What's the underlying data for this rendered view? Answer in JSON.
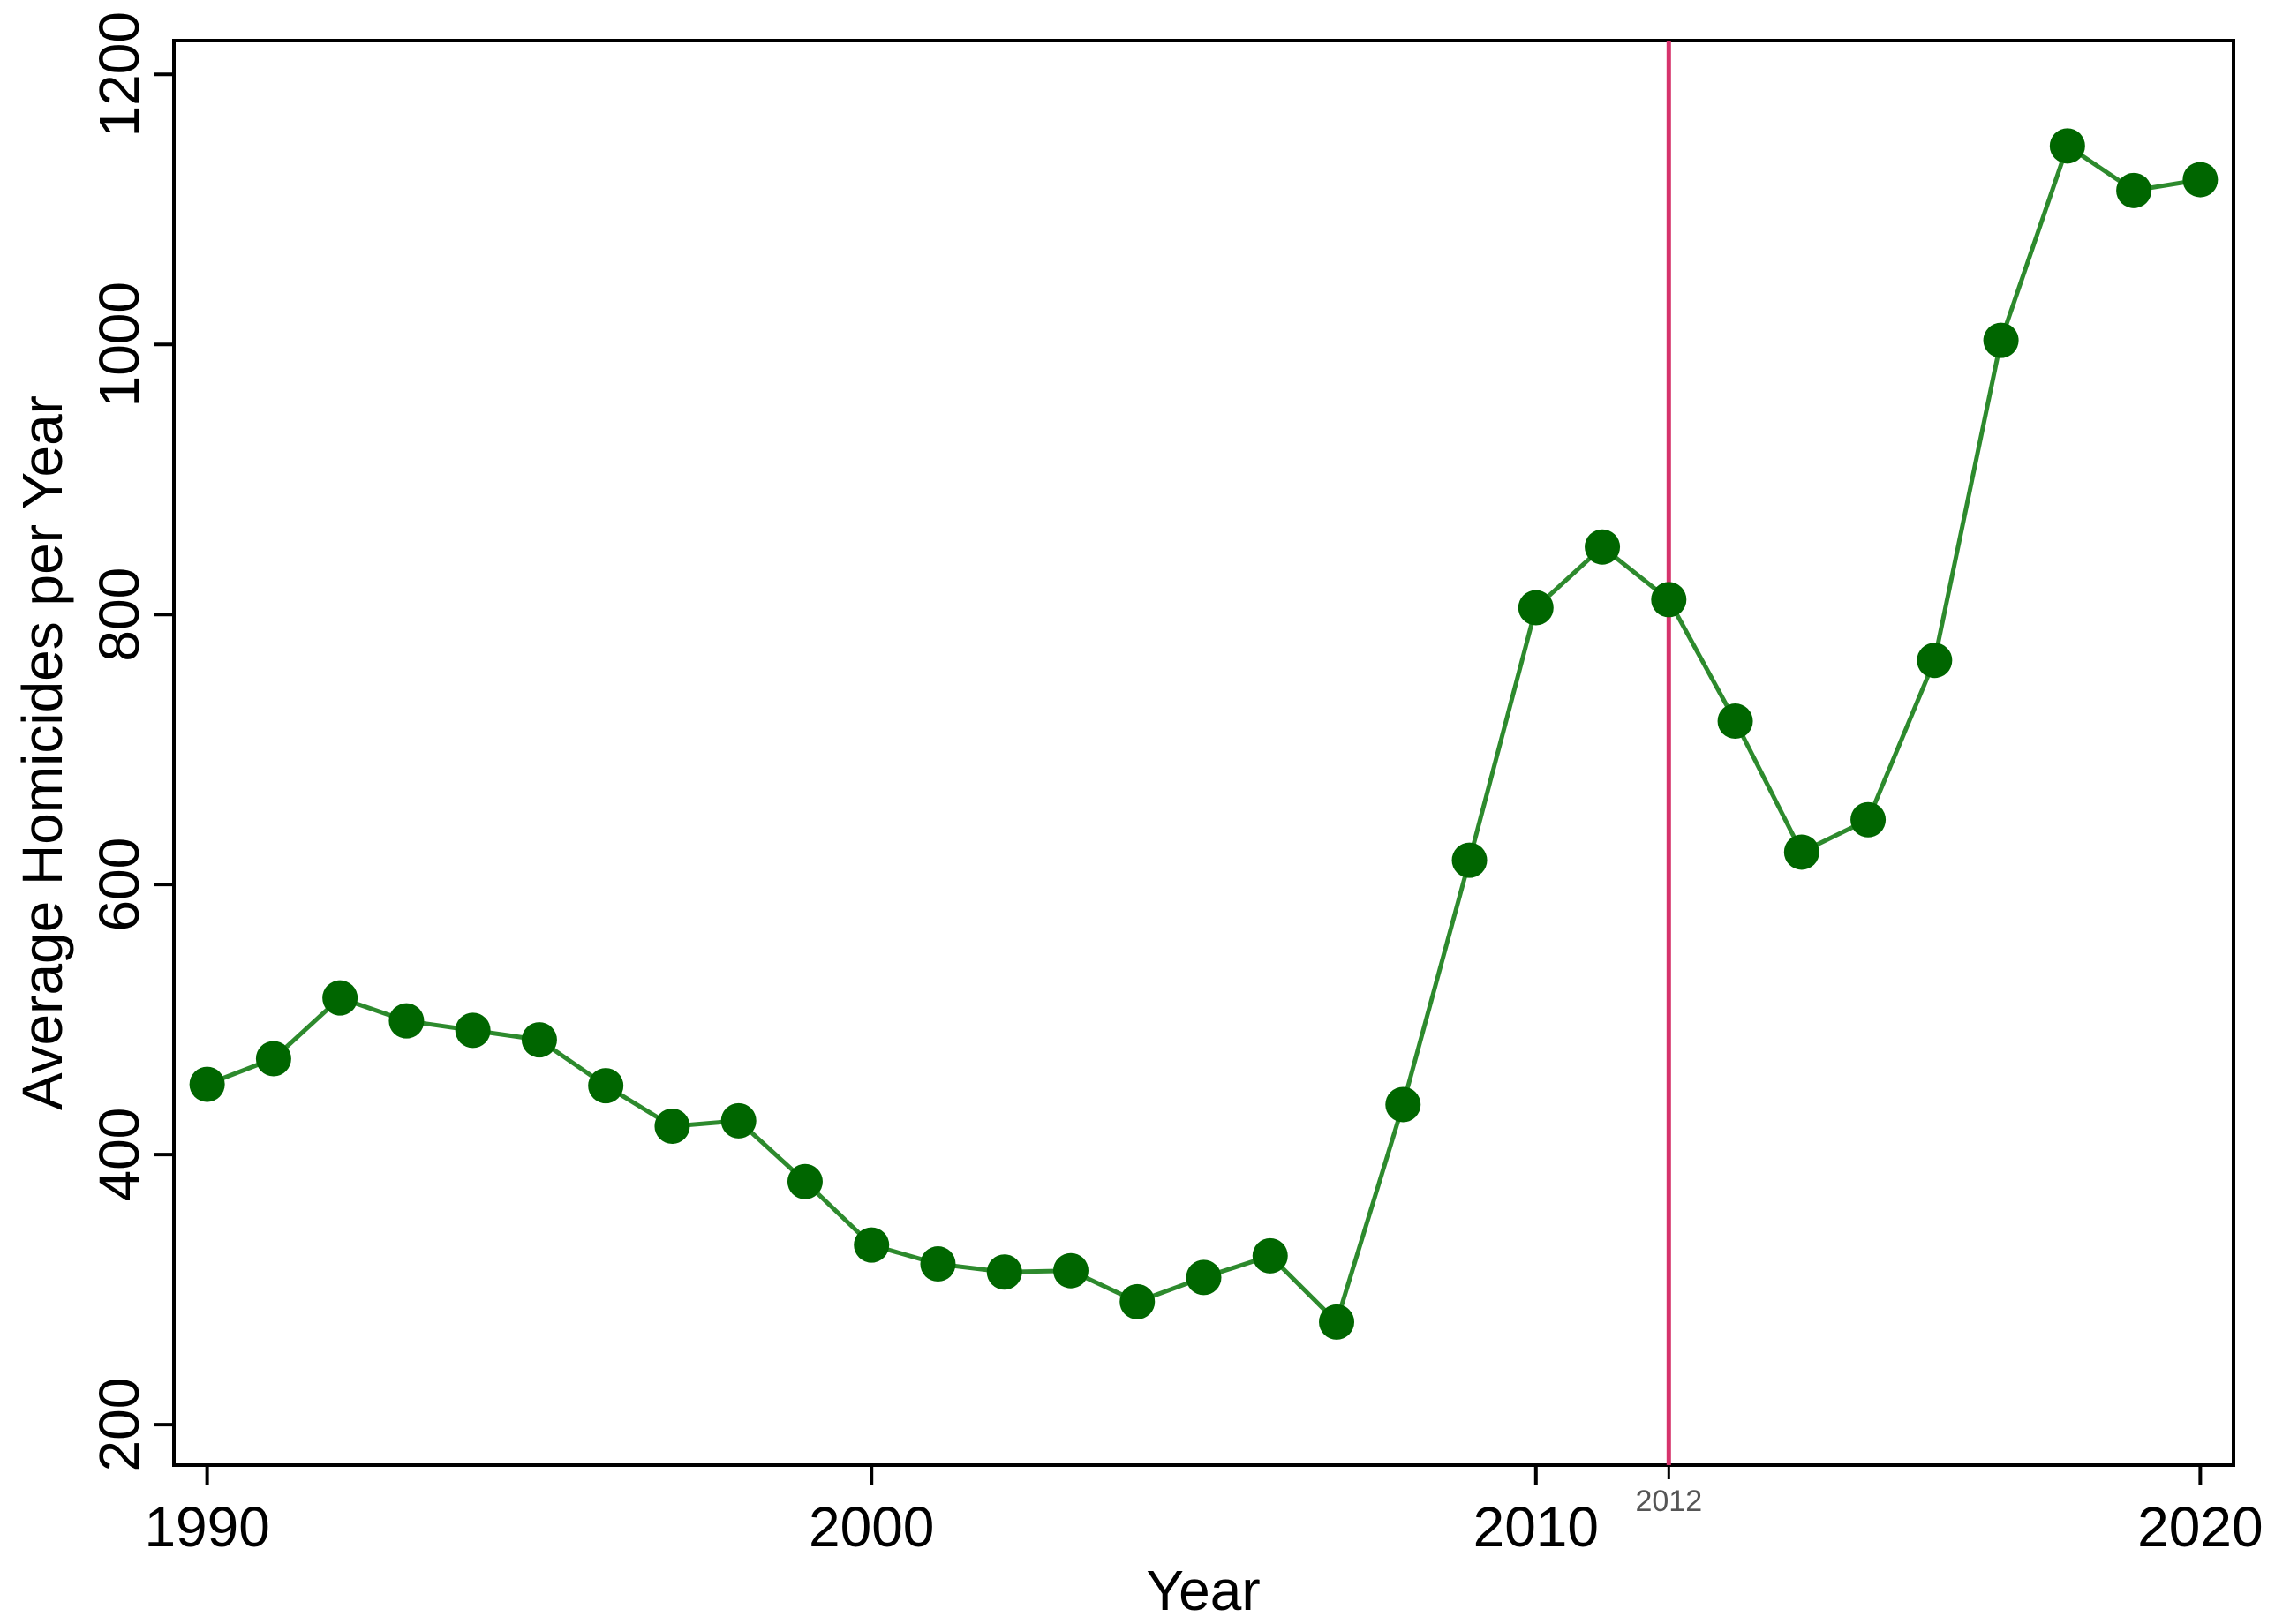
{
  "chart_data": {
    "type": "line",
    "xlabel": "Year",
    "ylabel": "Average Homicides per Year",
    "xlim": [
      1989.5,
      2020.5
    ],
    "ylim": [
      170,
      1225
    ],
    "x_ticks": [
      1990,
      2000,
      2010,
      2020
    ],
    "y_ticks": [
      200,
      400,
      600,
      800,
      1000,
      1200
    ],
    "grid": false,
    "series_color": "#006600",
    "line_color": "#2d8a2d",
    "reference_line": {
      "x": 2012,
      "label": "2012",
      "color": "#d6336c"
    },
    "x": [
      1990,
      1991,
      1992,
      1993,
      1994,
      1995,
      1996,
      1997,
      1998,
      1999,
      2000,
      2001,
      2002,
      2003,
      2004,
      2005,
      2006,
      2007,
      2008,
      2009,
      2010,
      2011,
      2012,
      2013,
      2014,
      2015,
      2016,
      2017,
      2018,
      2019,
      2020
    ],
    "values": [
      452,
      471,
      516,
      499,
      492,
      485,
      451,
      421,
      425,
      380,
      333,
      319,
      313,
      314,
      291,
      309,
      325,
      276,
      437,
      618,
      805,
      850,
      811,
      721,
      624,
      648,
      766,
      1003,
      1147,
      1114,
      1122
    ]
  }
}
